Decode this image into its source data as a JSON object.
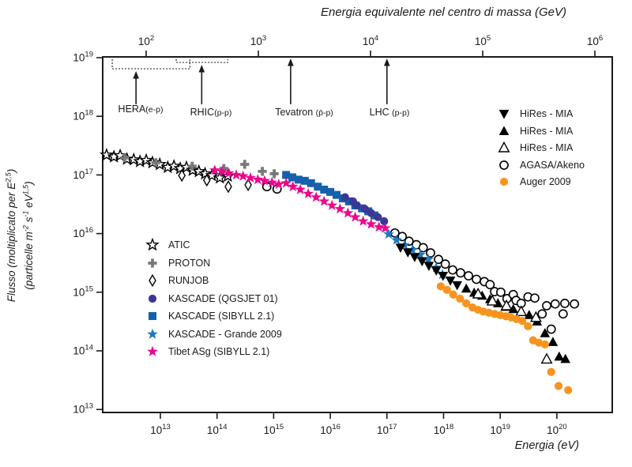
{
  "title_top": "Energia equivalente nel centro di massa (GeV)",
  "xlabel_bottom": "Energia (eV)",
  "y_axis_label": {
    "line1": {
      "t1": "Flusso (moltiplicato per E",
      "sup1": "2,5",
      "t2": ")"
    },
    "line2": {
      "t1": "(particelle m",
      "sup1": "-2",
      "t2": " s",
      "sup2": "-1",
      "t3": " eV",
      "sup3": "1,5",
      "t4": ")"
    }
  },
  "chart_data": {
    "type": "scatter",
    "x_axis_bottom": {
      "label": "Energia (eV)",
      "scale": "log",
      "tick_exponents": [
        13,
        14,
        15,
        16,
        17,
        18,
        19,
        20
      ],
      "range_exponents": [
        12,
        21
      ],
      "grid": false
    },
    "x_axis_top": {
      "label": "Energia equivalente nel centro di massa (GeV)",
      "scale": "log",
      "tick_exponents": [
        2,
        3,
        4,
        5,
        6
      ]
    },
    "y_axis": {
      "label": "Flusso (moltiplicato per E^2,5) (particelle m^-2 s^-1 eV^1,5)",
      "scale": "log",
      "tick_exponents": [
        19,
        18,
        17,
        16,
        15,
        14,
        13
      ],
      "range_exponents": [
        13,
        19
      ]
    },
    "accelerators": [
      {
        "name": "HERA",
        "detail": "(e-p)",
        "arrow_logE": 12.57,
        "bracket": [
          12.15,
          13.52
        ]
      },
      {
        "name": "RHIC",
        "detail": "(p-p)",
        "arrow_logE": 13.73,
        "bracket": [
          13.28,
          14.19
        ]
      },
      {
        "name": "Tevatron ",
        "detail": "(p̄-p)",
        "arrow_logE": 15.3,
        "bracket": null
      },
      {
        "name": "LHC ",
        "detail": "(p-p)",
        "arrow_logE": 17.0,
        "bracket": null
      }
    ],
    "series": [
      {
        "name": "ATIC",
        "marker": "star",
        "fill": "#ffffff",
        "stroke": "#000000",
        "points": [
          [
            12.05,
            17.34
          ],
          [
            12.18,
            17.31
          ],
          [
            12.29,
            17.33
          ],
          [
            12.41,
            17.27
          ],
          [
            12.53,
            17.26
          ],
          [
            12.64,
            17.23
          ],
          [
            12.75,
            17.25
          ],
          [
            12.86,
            17.21
          ],
          [
            12.99,
            17.18
          ],
          [
            13.13,
            17.13
          ],
          [
            13.24,
            17.15
          ],
          [
            13.35,
            17.11
          ],
          [
            13.46,
            17.13
          ],
          [
            13.57,
            17.08
          ],
          [
            13.68,
            17.06
          ],
          [
            13.79,
            17.02
          ],
          [
            13.91,
            16.99
          ],
          [
            14.05,
            16.95
          ],
          [
            14.19,
            16.98
          ]
        ]
      },
      {
        "name": "PROTON",
        "marker": "plus",
        "fill": "#77787b",
        "stroke": "none",
        "points": [
          [
            12.37,
            17.29
          ],
          [
            12.92,
            17.21
          ],
          [
            13.56,
            17.15
          ],
          [
            14.12,
            17.11
          ],
          [
            14.49,
            17.18
          ],
          [
            14.8,
            17.06
          ],
          [
            15.01,
            17.02
          ]
        ]
      },
      {
        "name": "RUNJOB",
        "marker": "diamond",
        "fill": "#ffffff",
        "stroke": "#000000",
        "points": [
          [
            13.38,
            16.99
          ],
          [
            13.82,
            16.91
          ],
          [
            14.2,
            16.8
          ],
          [
            14.55,
            16.83
          ]
        ]
      },
      {
        "name": "AGASA/Akeno",
        "marker": "circle",
        "fill": "#ffffff",
        "stroke": "#000000",
        "points": [
          [
            14.88,
            16.8
          ],
          [
            15.06,
            16.76
          ],
          [
            17.14,
            16.01
          ],
          [
            17.27,
            15.95
          ],
          [
            17.39,
            15.87
          ],
          [
            17.52,
            15.81
          ],
          [
            17.64,
            15.76
          ],
          [
            17.77,
            15.67
          ],
          [
            17.91,
            15.56
          ],
          [
            18.03,
            15.48
          ],
          [
            18.16,
            15.38
          ],
          [
            18.3,
            15.33
          ],
          [
            18.44,
            15.28
          ],
          [
            18.58,
            15.22
          ],
          [
            18.72,
            15.18
          ],
          [
            18.82,
            15.13
          ],
          [
            18.9,
            15.01
          ],
          [
            19.01,
            15.0
          ],
          [
            19.12,
            14.89
          ],
          [
            19.23,
            14.96
          ],
          [
            19.28,
            14.86
          ],
          [
            19.37,
            14.81
          ],
          [
            19.49,
            14.92
          ],
          [
            19.61,
            14.9
          ],
          [
            19.74,
            14.63
          ],
          [
            19.82,
            14.77
          ],
          [
            19.9,
            14.37
          ],
          [
            19.97,
            14.8
          ],
          [
            20.11,
            14.63
          ],
          [
            20.14,
            14.81
          ],
          [
            20.31,
            14.8
          ]
        ]
      },
      {
        "name": "KASCADE (SIBYLL 2.1)",
        "marker": "square",
        "fill": "#1561ac",
        "stroke": "none",
        "points": [
          [
            15.22,
            17.0
          ],
          [
            15.33,
            16.96
          ],
          [
            15.44,
            16.92
          ],
          [
            15.55,
            16.9
          ],
          [
            15.66,
            16.86
          ],
          [
            15.78,
            16.8
          ],
          [
            15.89,
            16.75
          ],
          [
            16.0,
            16.71
          ],
          [
            16.11,
            16.66
          ],
          [
            16.22,
            16.6
          ],
          [
            16.33,
            16.55
          ],
          [
            16.44,
            16.48
          ],
          [
            16.56,
            16.43
          ],
          [
            16.67,
            16.38
          ],
          [
            16.78,
            16.31
          ]
        ]
      },
      {
        "name": "KASCADE (QGSJET 01)",
        "marker": "circle",
        "fill": "#3b3794",
        "stroke": "none",
        "points": [
          [
            16.26,
            16.62
          ],
          [
            16.4,
            16.55
          ],
          [
            16.47,
            16.48
          ],
          [
            16.61,
            16.42
          ],
          [
            16.72,
            16.35
          ],
          [
            16.84,
            16.28
          ],
          [
            16.95,
            16.21
          ]
        ]
      },
      {
        "name": "Tibet ASg (SIBYLL 2.1)",
        "marker": "star",
        "fill": "#ec068c",
        "stroke": "none",
        "points": [
          [
            13.96,
            17.08
          ],
          [
            14.09,
            17.06
          ],
          [
            14.21,
            17.03
          ],
          [
            14.34,
            17.0
          ],
          [
            14.46,
            16.98
          ],
          [
            14.59,
            16.95
          ],
          [
            14.72,
            16.92
          ],
          [
            14.84,
            16.9
          ],
          [
            14.97,
            16.87
          ],
          [
            15.09,
            16.84
          ],
          [
            15.22,
            16.86
          ],
          [
            15.34,
            16.8
          ],
          [
            15.47,
            16.75
          ],
          [
            15.61,
            16.68
          ],
          [
            15.75,
            16.62
          ],
          [
            15.89,
            16.55
          ],
          [
            16.03,
            16.48
          ],
          [
            16.17,
            16.42
          ],
          [
            16.31,
            16.35
          ],
          [
            16.44,
            16.28
          ],
          [
            16.58,
            16.21
          ],
          [
            16.72,
            16.16
          ],
          [
            16.86,
            16.11
          ],
          [
            16.97,
            16.09
          ]
        ]
      },
      {
        "name": "KASCADE - Grande 2009",
        "marker": "star",
        "fill": "#1e79c0",
        "stroke": "none",
        "points": [
          [
            17.03,
            15.99
          ],
          [
            17.17,
            15.89
          ],
          [
            17.31,
            15.8
          ],
          [
            17.45,
            15.72
          ],
          [
            17.59,
            15.64
          ],
          [
            17.73,
            15.56
          ],
          [
            17.87,
            15.42
          ],
          [
            17.98,
            15.3
          ]
        ]
      },
      {
        "name": "HiRes - MIA",
        "marker": "triangle-down",
        "fill": "#000000",
        "stroke": "none",
        "points": [
          [
            17.24,
            15.76
          ],
          [
            17.37,
            15.68
          ],
          [
            17.49,
            15.6
          ],
          [
            17.62,
            15.53
          ],
          [
            17.74,
            15.45
          ],
          [
            17.87,
            15.37
          ],
          [
            17.99,
            15.28
          ],
          [
            18.12,
            15.2
          ],
          [
            18.24,
            15.12
          ]
        ]
      },
      {
        "name": "HiRes - MIA",
        "marker": "triangle-up",
        "fill": "#000000",
        "stroke": "none",
        "points": [
          [
            18.4,
            15.06
          ],
          [
            18.54,
            14.99
          ],
          [
            18.68,
            14.94
          ],
          [
            18.82,
            14.88
          ],
          [
            18.96,
            14.81
          ],
          [
            19.1,
            14.75
          ],
          [
            19.23,
            14.71
          ],
          [
            19.37,
            14.66
          ],
          [
            19.51,
            14.61
          ],
          [
            19.65,
            14.5
          ],
          [
            19.79,
            14.3
          ],
          [
            19.93,
            14.15
          ],
          [
            20.04,
            13.9
          ],
          [
            20.15,
            13.86
          ]
        ]
      },
      {
        "name": "HiRes - MIA",
        "marker": "triangle-up",
        "fill": "#ffffff",
        "stroke": "#000000",
        "points": [
          [
            18.61,
            14.97
          ],
          [
            18.86,
            14.85
          ],
          [
            19.11,
            14.77
          ],
          [
            19.37,
            14.67
          ],
          [
            19.63,
            14.57
          ],
          [
            19.82,
            13.86
          ]
        ]
      },
      {
        "name": "Auger 2009",
        "marker": "circle",
        "fill": "#f7941e",
        "stroke": "none",
        "points": [
          [
            17.95,
            15.1
          ],
          [
            18.06,
            15.04
          ],
          [
            18.17,
            14.96
          ],
          [
            18.29,
            14.89
          ],
          [
            18.4,
            14.81
          ],
          [
            18.51,
            14.74
          ],
          [
            18.61,
            14.7
          ],
          [
            18.7,
            14.67
          ],
          [
            18.8,
            14.65
          ],
          [
            18.9,
            14.63
          ],
          [
            19.0,
            14.61
          ],
          [
            19.1,
            14.59
          ],
          [
            19.19,
            14.57
          ],
          [
            19.29,
            14.54
          ],
          [
            19.39,
            14.51
          ],
          [
            19.49,
            14.42
          ],
          [
            19.58,
            14.18
          ],
          [
            19.68,
            14.14
          ],
          [
            19.79,
            14.11
          ],
          [
            19.9,
            13.64
          ],
          [
            20.03,
            13.4
          ],
          [
            20.2,
            13.33
          ]
        ]
      }
    ]
  },
  "legend_right": {
    "series_refs": [
      8,
      9,
      10,
      3,
      11
    ]
  },
  "legend_left": {
    "series_refs": [
      0,
      1,
      2,
      5,
      4,
      7,
      6
    ]
  },
  "colors": {
    "auger_orange": "#f7941e",
    "tibet_magenta": "#ec068c",
    "kascade_blue": "#1561ac",
    "qgsjet_indigo": "#3b3794",
    "grande_blue": "#1e79c0",
    "proton_gray": "#77787b",
    "axis_black": "#1a1a1a"
  }
}
